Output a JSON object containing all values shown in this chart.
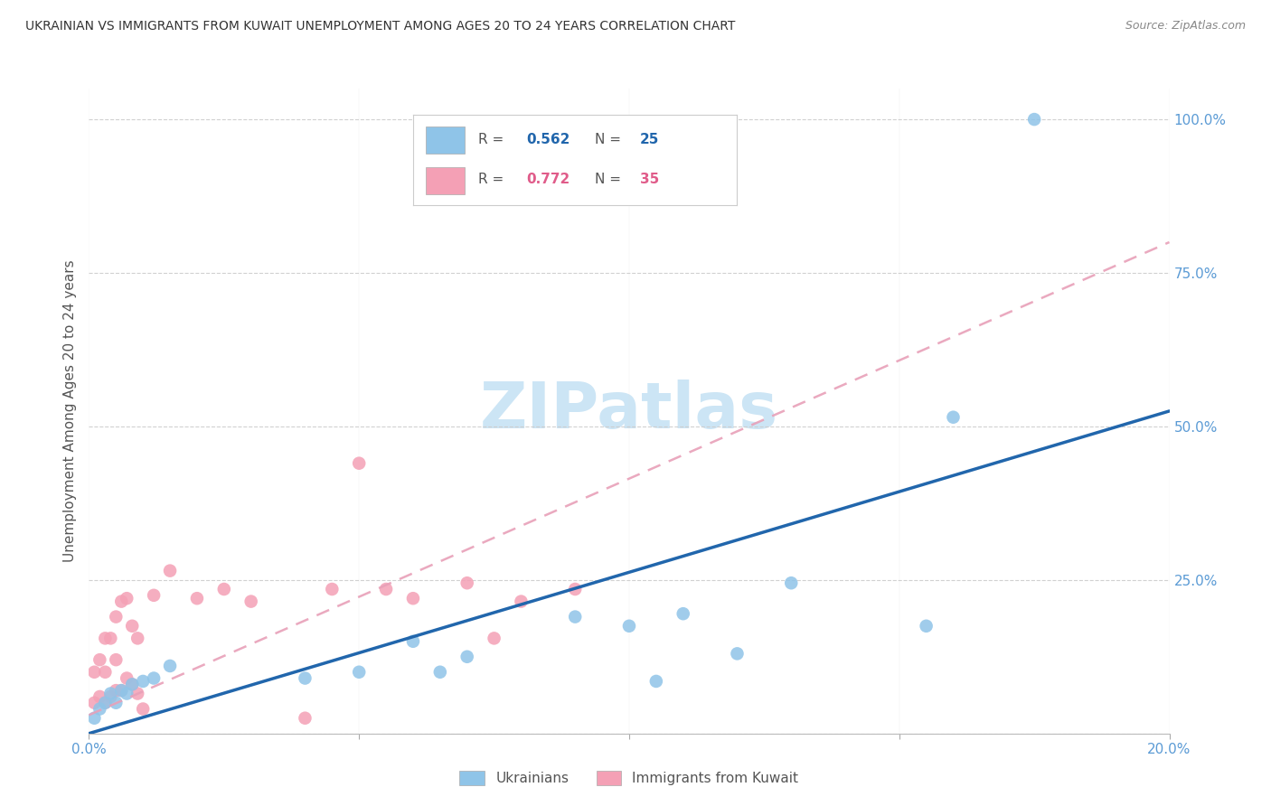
{
  "title": "UKRAINIAN VS IMMIGRANTS FROM KUWAIT UNEMPLOYMENT AMONG AGES 20 TO 24 YEARS CORRELATION CHART",
  "source": "Source: ZipAtlas.com",
  "ylabel": "Unemployment Among Ages 20 to 24 years",
  "xlim": [
    0.0,
    0.2
  ],
  "ylim": [
    0.0,
    1.05
  ],
  "ytick_values": [
    0.0,
    0.25,
    0.5,
    0.75,
    1.0
  ],
  "ytick_labels": [
    "",
    "25.0%",
    "50.0%",
    "75.0%",
    "100.0%"
  ],
  "xtick_values": [
    0.0,
    0.05,
    0.1,
    0.15,
    0.2
  ],
  "xtick_labels": [
    "0.0%",
    "",
    "",
    "",
    "20.0%"
  ],
  "legend_blue_label": "Ukrainians",
  "legend_pink_label": "Immigrants from Kuwait",
  "blue_R": "0.562",
  "blue_N": "25",
  "pink_R": "0.772",
  "pink_N": "35",
  "blue_scatter_color": "#8fc4e8",
  "pink_scatter_color": "#f4a0b5",
  "blue_line_color": "#2166ac",
  "pink_line_color": "#e8a0b8",
  "tick_color": "#5b9bd5",
  "background_color": "#ffffff",
  "watermark_color": "#cce5f5",
  "blue_scatter_x": [
    0.001,
    0.002,
    0.003,
    0.004,
    0.005,
    0.006,
    0.007,
    0.008,
    0.01,
    0.012,
    0.015,
    0.04,
    0.05,
    0.06,
    0.065,
    0.07,
    0.09,
    0.1,
    0.105,
    0.11,
    0.12,
    0.13,
    0.155,
    0.16,
    0.175
  ],
  "blue_scatter_y": [
    0.025,
    0.04,
    0.05,
    0.065,
    0.05,
    0.07,
    0.065,
    0.08,
    0.085,
    0.09,
    0.11,
    0.09,
    0.1,
    0.15,
    0.1,
    0.125,
    0.19,
    0.175,
    0.085,
    0.195,
    0.13,
    0.245,
    0.175,
    0.515,
    1.0
  ],
  "pink_scatter_x": [
    0.001,
    0.001,
    0.002,
    0.002,
    0.003,
    0.003,
    0.003,
    0.004,
    0.004,
    0.005,
    0.005,
    0.005,
    0.006,
    0.006,
    0.007,
    0.007,
    0.008,
    0.008,
    0.009,
    0.009,
    0.01,
    0.012,
    0.015,
    0.02,
    0.025,
    0.03,
    0.04,
    0.045,
    0.05,
    0.055,
    0.06,
    0.07,
    0.075,
    0.08,
    0.09
  ],
  "pink_scatter_y": [
    0.05,
    0.1,
    0.06,
    0.12,
    0.05,
    0.1,
    0.155,
    0.06,
    0.155,
    0.07,
    0.12,
    0.19,
    0.07,
    0.215,
    0.09,
    0.22,
    0.08,
    0.175,
    0.065,
    0.155,
    0.04,
    0.225,
    0.265,
    0.22,
    0.235,
    0.215,
    0.025,
    0.235,
    0.44,
    0.235,
    0.22,
    0.245,
    0.155,
    0.215,
    0.235
  ],
  "blue_line_x": [
    0.0,
    0.2
  ],
  "blue_line_y": [
    0.0,
    0.525
  ],
  "pink_line_x": [
    0.0,
    0.2
  ],
  "pink_line_y": [
    0.03,
    0.8
  ]
}
